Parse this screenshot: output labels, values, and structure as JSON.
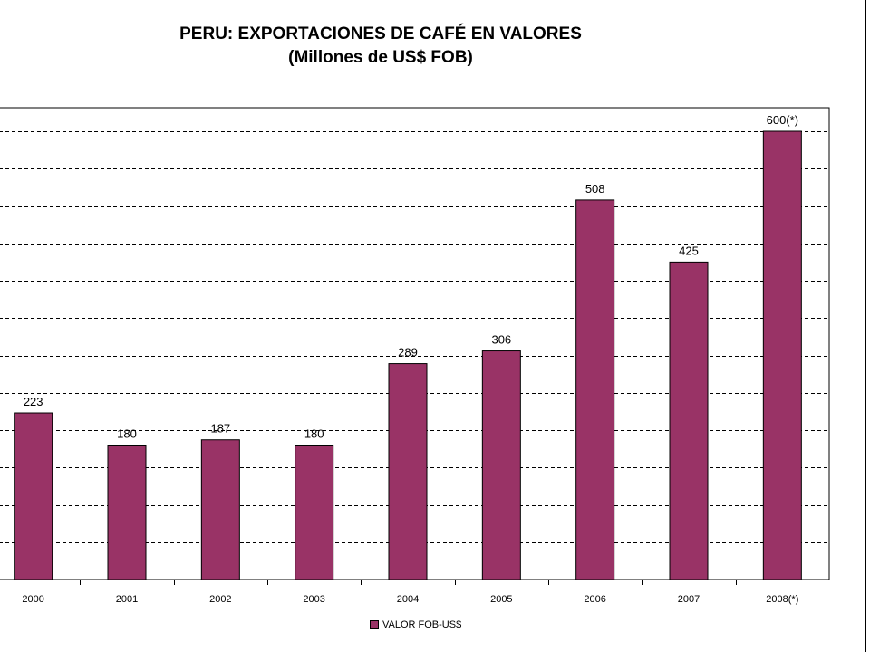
{
  "chart_data": {
    "type": "bar",
    "title": "PERU: EXPORTACIONES DE CAFÉ EN VALORES",
    "subtitle": "(Millones de US$ FOB)",
    "categories": [
      "2000",
      "2001",
      "2002",
      "2003",
      "2004",
      "2005",
      "2006",
      "2007",
      "2008(*)"
    ],
    "series": [
      {
        "name": "VALOR FOB-US$",
        "values": [
          223,
          180,
          187,
          180,
          289,
          306,
          508,
          425,
          600
        ],
        "labels": [
          "223",
          "180",
          "187",
          "180",
          "289",
          "306",
          "508",
          "425",
          "600(*)"
        ]
      }
    ],
    "ylim": [
      0,
      600
    ],
    "grid": true,
    "legend": "bottom",
    "bar_color": "#993366"
  }
}
